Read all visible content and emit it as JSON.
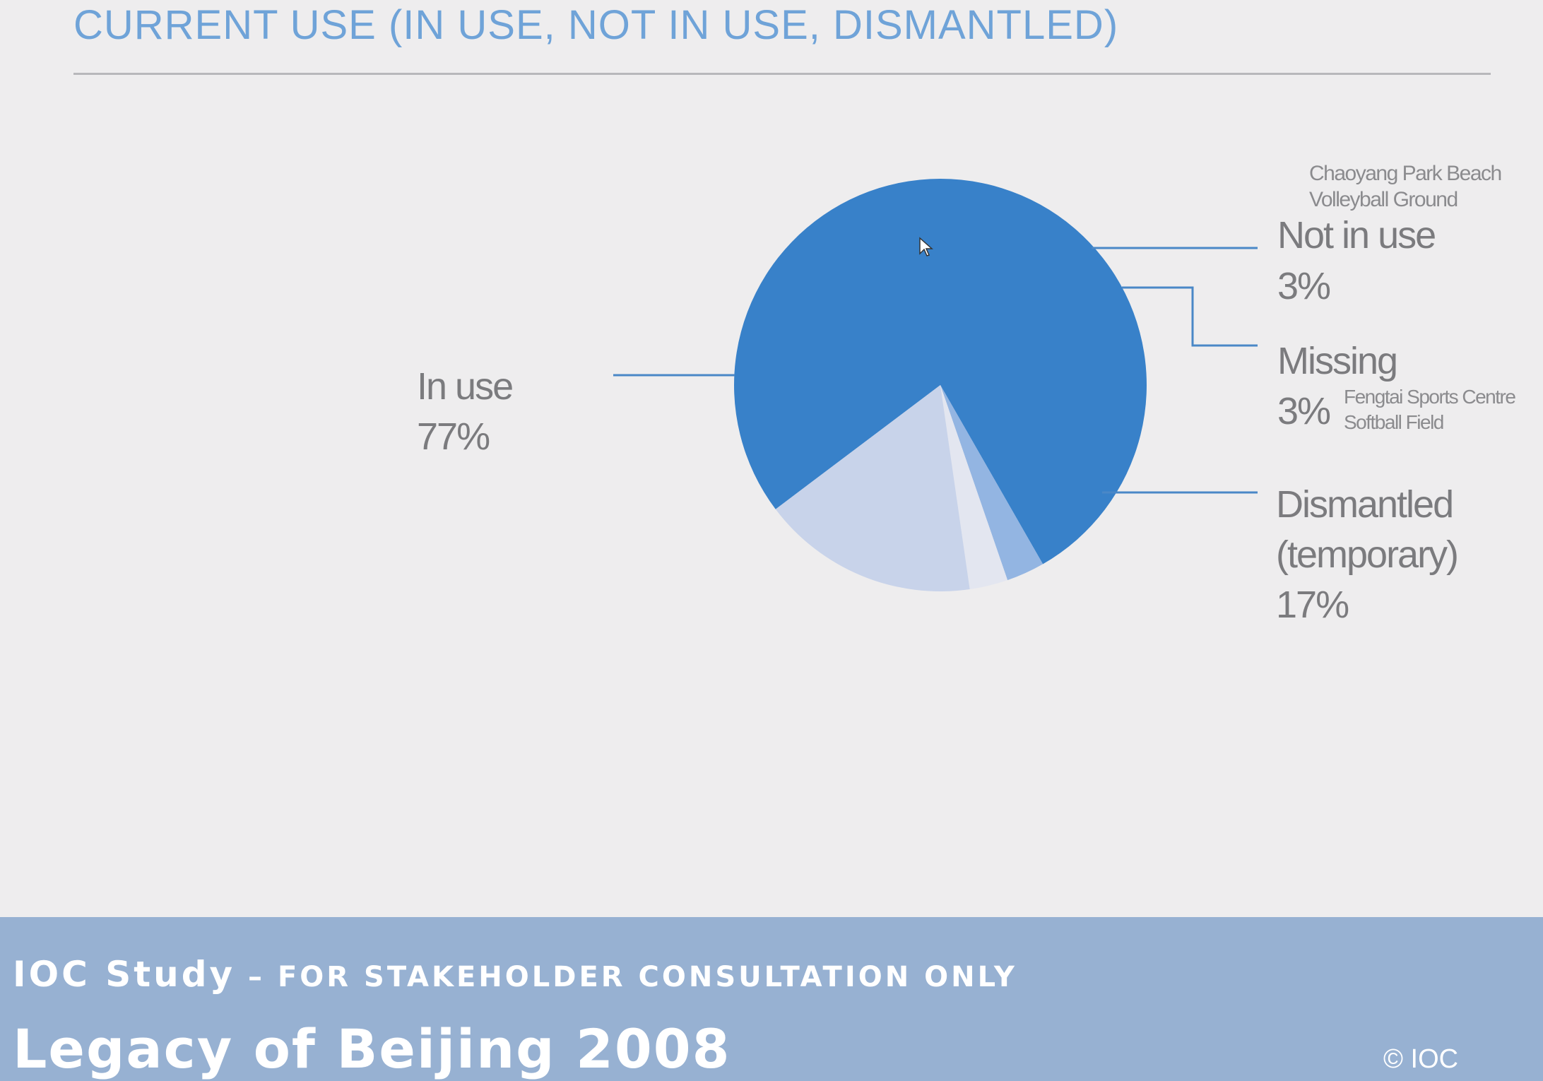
{
  "slide": {
    "title": "CURRENT USE (IN USE, NOT IN USE, DISMANTLED)"
  },
  "chart_data": {
    "type": "pie",
    "title": "CURRENT USE (IN USE, NOT IN USE, DISMANTLED)",
    "slices": [
      {
        "label": "In use",
        "value": 77,
        "value_label": "77%",
        "color": "#3881c9"
      },
      {
        "label": "Not in use",
        "value": 3,
        "value_label": "3%",
        "note": "Chaoyang Park Beach Volleyball Ground",
        "note_lines": [
          "Chaoyang Park Beach",
          "Volleyball Ground"
        ],
        "color": "#93b5e2"
      },
      {
        "label": "Missing",
        "value": 3,
        "value_label": "3%",
        "note": "Fengtai Sports Centre Softball Field",
        "note_lines": [
          "Fengtai Sports Centre",
          "Softball Field"
        ],
        "color": "#e3e6f0"
      },
      {
        "label": "Dismantled (temporary)",
        "value": 17,
        "value_label": "17%",
        "label_lines": [
          "Dismantled",
          "(temporary)"
        ],
        "color": "#c8d3ea"
      }
    ],
    "leader_color": "#4a88c7"
  },
  "footer": {
    "line1_prefix": "IOC Study",
    "line1_sep": " – ",
    "line1_rest": "for stakeholder consultation only",
    "line2": "Legacy of Beijing 2008",
    "copyright": "© IOC",
    "background": "#97b1d2"
  }
}
